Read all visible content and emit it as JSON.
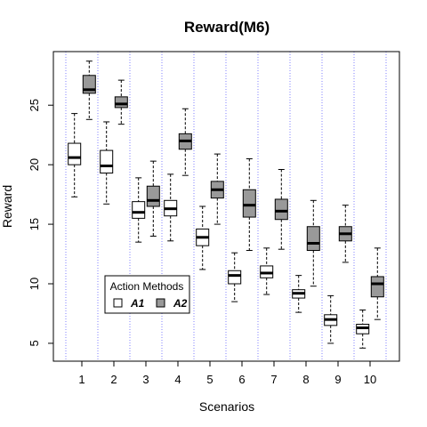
{
  "chart_data": {
    "type": "boxplot",
    "title": "Reward(M6)",
    "xlabel": "Scenarios",
    "ylabel": "Reward",
    "categories": [
      "1",
      "2",
      "3",
      "4",
      "5",
      "6",
      "7",
      "8",
      "9",
      "10"
    ],
    "ylim": [
      3.5,
      29.5
    ],
    "yticks": [
      5,
      10,
      15,
      20,
      25
    ],
    "grid": "vertical dotted separators between scenarios",
    "legend": {
      "title": "Action Methods",
      "placement": "bottom-left",
      "entries": [
        "A1",
        "A2"
      ]
    },
    "series": [
      {
        "name": "A1",
        "fill": "#ffffff",
        "boxes": [
          {
            "scenario": "1",
            "min": 17.3,
            "q1": 20.0,
            "median": 20.6,
            "q3": 21.8,
            "max": 24.3
          },
          {
            "scenario": "2",
            "min": 16.7,
            "q1": 19.3,
            "median": 19.9,
            "q3": 21.2,
            "max": 23.6
          },
          {
            "scenario": "3",
            "min": 13.5,
            "q1": 15.5,
            "median": 16.0,
            "q3": 16.9,
            "max": 18.9
          },
          {
            "scenario": "4",
            "min": 13.6,
            "q1": 15.7,
            "median": 16.3,
            "q3": 17.0,
            "max": 19.2
          },
          {
            "scenario": "5",
            "min": 11.2,
            "q1": 13.2,
            "median": 13.9,
            "q3": 14.6,
            "max": 16.5
          },
          {
            "scenario": "6",
            "min": 8.5,
            "q1": 10.0,
            "median": 10.7,
            "q3": 11.1,
            "max": 12.6
          },
          {
            "scenario": "7",
            "min": 9.1,
            "q1": 10.5,
            "median": 10.9,
            "q3": 11.5,
            "max": 13.0
          },
          {
            "scenario": "8",
            "min": 7.6,
            "q1": 8.8,
            "median": 9.2,
            "q3": 9.5,
            "max": 10.7
          },
          {
            "scenario": "9",
            "min": 5.0,
            "q1": 6.5,
            "median": 7.0,
            "q3": 7.4,
            "max": 9.0
          },
          {
            "scenario": "10",
            "min": 4.6,
            "q1": 5.8,
            "median": 6.3,
            "q3": 6.6,
            "max": 7.8
          }
        ]
      },
      {
        "name": "A2",
        "fill": "#999999",
        "boxes": [
          {
            "scenario": "1",
            "min": 23.8,
            "q1": 26.0,
            "median": 26.3,
            "q3": 27.5,
            "max": 28.7
          },
          {
            "scenario": "2",
            "min": 23.4,
            "q1": 24.8,
            "median": 25.1,
            "q3": 25.7,
            "max": 27.1
          },
          {
            "scenario": "3",
            "min": 14.0,
            "q1": 16.5,
            "median": 17.0,
            "q3": 18.2,
            "max": 20.3
          },
          {
            "scenario": "4",
            "min": 19.1,
            "q1": 21.3,
            "median": 22.0,
            "q3": 22.6,
            "max": 24.7
          },
          {
            "scenario": "5",
            "min": 15.0,
            "q1": 17.2,
            "median": 17.9,
            "q3": 18.6,
            "max": 20.9
          },
          {
            "scenario": "6",
            "min": 12.8,
            "q1": 15.6,
            "median": 16.6,
            "q3": 17.9,
            "max": 20.5
          },
          {
            "scenario": "7",
            "min": 12.9,
            "q1": 15.4,
            "median": 16.1,
            "q3": 17.1,
            "max": 19.6
          },
          {
            "scenario": "8",
            "min": 9.8,
            "q1": 12.8,
            "median": 13.4,
            "q3": 14.8,
            "max": 17.0
          },
          {
            "scenario": "9",
            "min": 11.8,
            "q1": 13.6,
            "median": 14.2,
            "q3": 14.8,
            "max": 16.6
          },
          {
            "scenario": "10",
            "min": 7.0,
            "q1": 8.9,
            "median": 10.0,
            "q3": 10.6,
            "max": 13.0
          }
        ]
      }
    ]
  }
}
